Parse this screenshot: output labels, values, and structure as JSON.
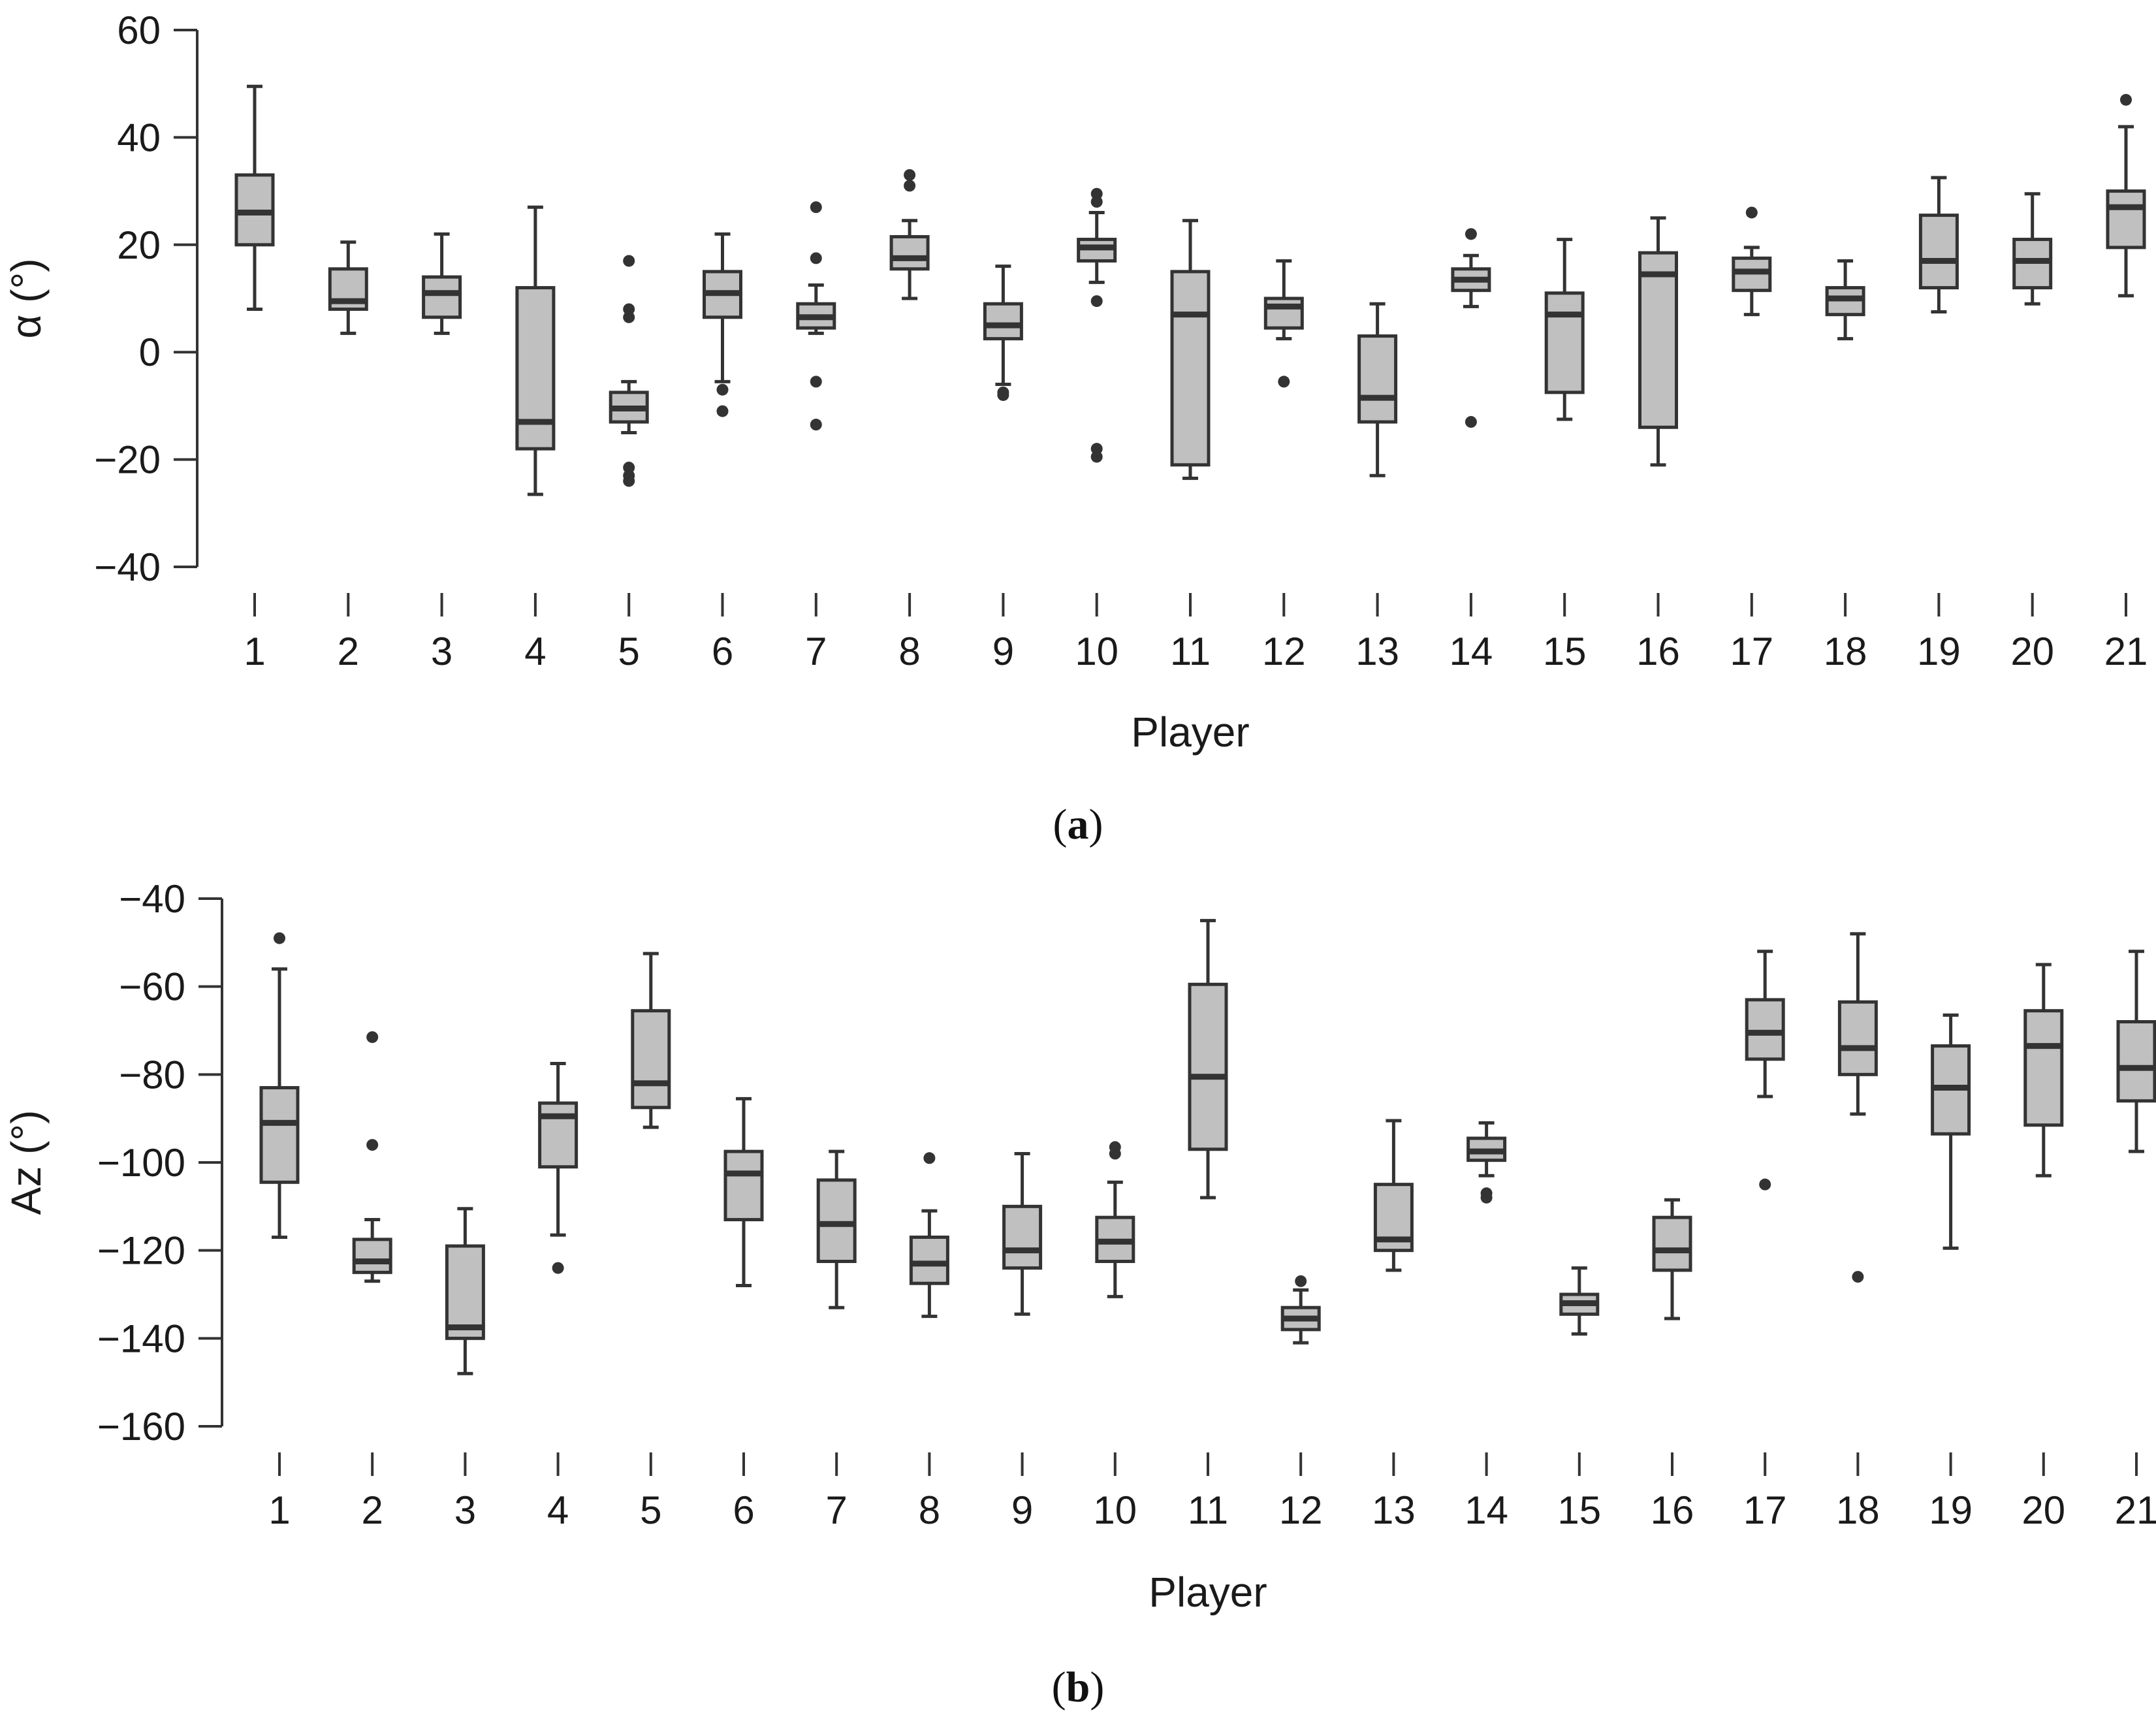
{
  "chart_data": [
    {
      "type": "box",
      "panel_label": "a",
      "xlabel": "Player",
      "ylabel": "α (°)",
      "ylim": [
        -40,
        60
      ],
      "yticks": [
        -40,
        -20,
        0,
        20,
        40,
        60
      ],
      "ytick_labels": [
        "−40",
        "−20",
        "0",
        "20",
        "40",
        "60"
      ],
      "categories": [
        "1",
        "2",
        "3",
        "4",
        "5",
        "6",
        "7",
        "8",
        "9",
        "10",
        "11",
        "12",
        "13",
        "14",
        "15",
        "16",
        "17",
        "18",
        "19",
        "20",
        "21"
      ],
      "box_color": "#c0c0c0",
      "line_color": "#333333",
      "boxes": [
        {
          "whislo": 8,
          "q1": 20,
          "med": 26,
          "q3": 33,
          "whishi": 49.5,
          "fliers": []
        },
        {
          "whislo": 3.5,
          "q1": 8,
          "med": 9.5,
          "q3": 15.5,
          "whishi": 20.5,
          "fliers": []
        },
        {
          "whislo": 3.5,
          "q1": 6.5,
          "med": 11,
          "q3": 14,
          "whishi": 22,
          "fliers": []
        },
        {
          "whislo": -26.5,
          "q1": -18,
          "med": -13,
          "q3": 12,
          "whishi": 27,
          "fliers": []
        },
        {
          "whislo": -15,
          "q1": -13,
          "med": -10.5,
          "q3": -7.5,
          "whishi": -5.5,
          "fliers": [
            17,
            8,
            6.5,
            -21.5,
            -23,
            -24
          ]
        },
        {
          "whislo": -5.5,
          "q1": 6.5,
          "med": 11,
          "q3": 15,
          "whishi": 22,
          "fliers": [
            -7,
            -11
          ]
        },
        {
          "whislo": 3.5,
          "q1": 4.5,
          "med": 6.5,
          "q3": 9,
          "whishi": 12.5,
          "fliers": [
            27,
            17.5,
            -5.5,
            -13.5
          ]
        },
        {
          "whislo": 10,
          "q1": 15.5,
          "med": 17.5,
          "q3": 21.5,
          "whishi": 24.5,
          "fliers": [
            33,
            31
          ]
        },
        {
          "whislo": -6,
          "q1": 2.5,
          "med": 5,
          "q3": 9,
          "whishi": 16,
          "fliers": [
            -7.5,
            -8
          ]
        },
        {
          "whislo": 13,
          "q1": 17,
          "med": 19.5,
          "q3": 21,
          "whishi": 26,
          "fliers": [
            29.5,
            28,
            9.5,
            -18,
            -19.5
          ]
        },
        {
          "whislo": -23.5,
          "q1": -21,
          "med": 7,
          "q3": 15,
          "whishi": 24.5,
          "fliers": []
        },
        {
          "whislo": 2.5,
          "q1": 4.5,
          "med": 8.5,
          "q3": 10,
          "whishi": 17,
          "fliers": [
            -5.5
          ]
        },
        {
          "whislo": -23,
          "q1": -13,
          "med": -8.5,
          "q3": 3,
          "whishi": 9,
          "fliers": []
        },
        {
          "whislo": 8.5,
          "q1": 11.5,
          "med": 13.5,
          "q3": 15.5,
          "whishi": 18,
          "fliers": [
            22,
            -13
          ]
        },
        {
          "whislo": -12.5,
          "q1": -7.5,
          "med": 7,
          "q3": 11,
          "whishi": 21,
          "fliers": []
        },
        {
          "whislo": -21,
          "q1": -14,
          "med": 14.5,
          "q3": 18.5,
          "whishi": 25,
          "fliers": []
        },
        {
          "whislo": 7,
          "q1": 11.5,
          "med": 15,
          "q3": 17.5,
          "whishi": 19.5,
          "fliers": [
            26
          ]
        },
        {
          "whislo": 2.5,
          "q1": 7,
          "med": 10,
          "q3": 12,
          "whishi": 17,
          "fliers": []
        },
        {
          "whislo": 7.5,
          "q1": 12,
          "med": 17,
          "q3": 25.5,
          "whishi": 32.5,
          "fliers": []
        },
        {
          "whislo": 9,
          "q1": 12,
          "med": 17,
          "q3": 21,
          "whishi": 29.5,
          "fliers": []
        },
        {
          "whislo": 10.5,
          "q1": 19.5,
          "med": 27,
          "q3": 30,
          "whishi": 42,
          "fliers": [
            47
          ]
        }
      ]
    },
    {
      "type": "box",
      "panel_label": "b",
      "xlabel": "Player",
      "ylabel": "Az (°)",
      "ylim": [
        -160,
        -40
      ],
      "yticks": [
        -160,
        -140,
        -120,
        -100,
        -80,
        -60,
        -40
      ],
      "ytick_labels": [
        "−160",
        "−140",
        "−120",
        "−100",
        "−80",
        "−60",
        "−40"
      ],
      "categories": [
        "1",
        "2",
        "3",
        "4",
        "5",
        "6",
        "7",
        "8",
        "9",
        "10",
        "11",
        "12",
        "13",
        "14",
        "15",
        "16",
        "17",
        "18",
        "19",
        "20",
        "21"
      ],
      "box_color": "#c0c0c0",
      "line_color": "#333333",
      "boxes": [
        {
          "whislo": -117,
          "q1": -104.5,
          "med": -91,
          "q3": -83,
          "whishi": -56,
          "fliers": [
            -49
          ]
        },
        {
          "whislo": -127,
          "q1": -125,
          "med": -122.5,
          "q3": -117.5,
          "whishi": -113,
          "fliers": [
            -71.5,
            -96
          ]
        },
        {
          "whislo": -148,
          "q1": -140,
          "med": -137.5,
          "q3": -119,
          "whishi": -110.5,
          "fliers": []
        },
        {
          "whislo": -116.5,
          "q1": -101,
          "med": -89.5,
          "q3": -86.5,
          "whishi": -77.5,
          "fliers": [
            -124
          ]
        },
        {
          "whislo": -92,
          "q1": -87.5,
          "med": -82,
          "q3": -65.5,
          "whishi": -52.5,
          "fliers": []
        },
        {
          "whislo": -128,
          "q1": -113,
          "med": -102.5,
          "q3": -97.5,
          "whishi": -85.5,
          "fliers": []
        },
        {
          "whislo": -133,
          "q1": -122.5,
          "med": -114,
          "q3": -104,
          "whishi": -97.5,
          "fliers": []
        },
        {
          "whislo": -135,
          "q1": -127.5,
          "med": -123,
          "q3": -117,
          "whishi": -111,
          "fliers": [
            -99
          ]
        },
        {
          "whislo": -134.5,
          "q1": -124,
          "med": -120,
          "q3": -110,
          "whishi": -98,
          "fliers": []
        },
        {
          "whislo": -130.5,
          "q1": -122.5,
          "med": -118,
          "q3": -112.5,
          "whishi": -104.5,
          "fliers": [
            -96.5,
            -98
          ]
        },
        {
          "whislo": -108,
          "q1": -97,
          "med": -80.5,
          "q3": -59.5,
          "whishi": -45,
          "fliers": []
        },
        {
          "whislo": -141,
          "q1": -138,
          "med": -135.5,
          "q3": -133,
          "whishi": -129,
          "fliers": [
            -127
          ]
        },
        {
          "whislo": -124.5,
          "q1": -120,
          "med": -117.5,
          "q3": -105,
          "whishi": -90.5,
          "fliers": []
        },
        {
          "whislo": -103,
          "q1": -99.5,
          "med": -97.5,
          "q3": -94.5,
          "whishi": -91,
          "fliers": [
            -107,
            -108
          ]
        },
        {
          "whislo": -139,
          "q1": -134.5,
          "med": -132,
          "q3": -130,
          "whishi": -124,
          "fliers": []
        },
        {
          "whislo": -135.5,
          "q1": -124.5,
          "med": -120,
          "q3": -112.5,
          "whishi": -108.5,
          "fliers": []
        },
        {
          "whislo": -85,
          "q1": -76.5,
          "med": -70.5,
          "q3": -63,
          "whishi": -52,
          "fliers": [
            -105
          ]
        },
        {
          "whislo": -89,
          "q1": -80,
          "med": -74,
          "q3": -63.5,
          "whishi": -48,
          "fliers": [
            -126
          ]
        },
        {
          "whislo": -119.5,
          "q1": -93.5,
          "med": -83,
          "q3": -73.5,
          "whishi": -66.5,
          "fliers": []
        },
        {
          "whislo": -103,
          "q1": -91.5,
          "med": -73.5,
          "q3": -65.5,
          "whishi": -55,
          "fliers": []
        },
        {
          "whislo": -97.5,
          "q1": -86,
          "med": -78.5,
          "q3": -68,
          "whishi": -52,
          "fliers": []
        }
      ]
    }
  ]
}
